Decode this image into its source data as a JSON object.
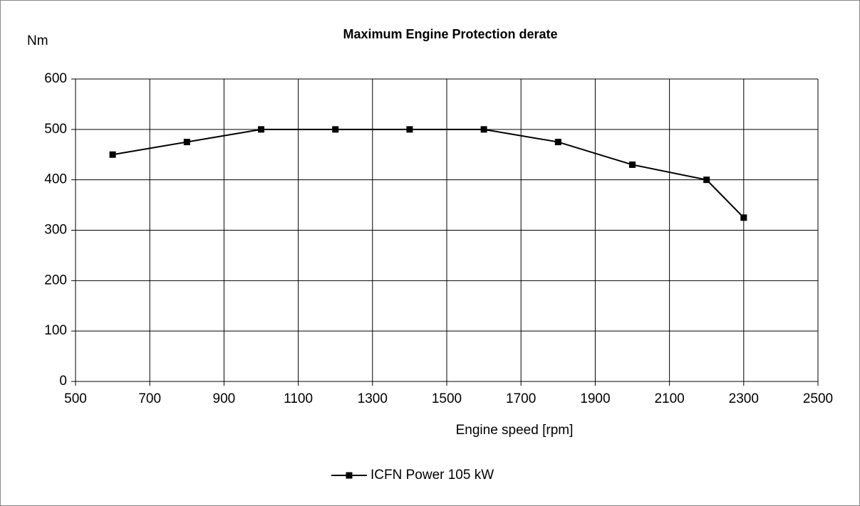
{
  "chart_data": {
    "type": "line",
    "title": "Maximum Engine Protection derate",
    "y_label": "Nm",
    "x_label": "Engine speed [rpm]",
    "x": [
      600,
      800,
      1000,
      1200,
      1400,
      1600,
      1800,
      2000,
      2200,
      2300
    ],
    "series": [
      {
        "name": "ICFN Power 105 kW",
        "color": "#000000",
        "values": [
          450,
          475,
          500,
          500,
          500,
          500,
          475,
          430,
          400,
          325
        ]
      }
    ],
    "xlim": [
      500,
      2500
    ],
    "xticks": [
      500,
      700,
      900,
      1100,
      1300,
      1500,
      1700,
      1900,
      2100,
      2300,
      2500
    ],
    "ylim": [
      0,
      600
    ],
    "yticks": [
      0,
      100,
      200,
      300,
      400,
      500,
      600
    ],
    "grid": true,
    "legend": "bottom"
  }
}
